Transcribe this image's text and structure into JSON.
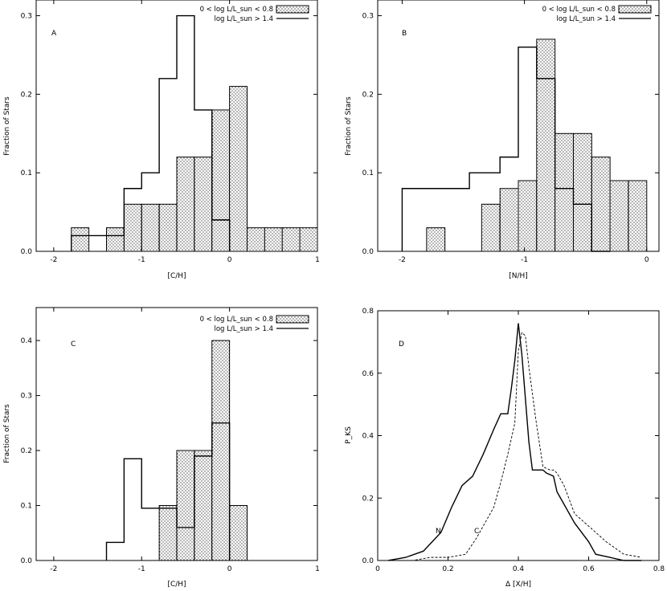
{
  "chart_data": [
    {
      "type": "bar",
      "panel": "A",
      "xlabel": "[C/H]",
      "ylabel": "Fraction of Stars",
      "xlim": [
        -2.2,
        1.0
      ],
      "ylim": [
        0,
        0.32
      ],
      "xticks": [
        -2,
        -1,
        0,
        1
      ],
      "yticks": [
        0.0,
        0.1,
        0.2,
        0.3
      ],
      "ytick_labels": [
        "0.0",
        "0.1",
        "0.2",
        "0.3"
      ],
      "legend": {
        "dwarf_label": "0 < log L/L_sun < 0.8",
        "giant_label": "log L/L_sun > 1.4",
        "position": "top-right"
      },
      "bin_width": 0.2,
      "dwarfs": {
        "bins": [
          -1.8,
          -1.6,
          -1.4,
          -1.2,
          -1.0,
          -0.8,
          -0.6,
          -0.4,
          -0.2,
          0.0,
          0.2,
          0.4,
          0.6,
          0.8
        ],
        "values": [
          0.03,
          0.0,
          0.03,
          0.06,
          0.06,
          0.06,
          0.12,
          0.12,
          0.18,
          0.21,
          0.03,
          0.03,
          0.03,
          0.03
        ]
      },
      "giants": {
        "step_x": [
          -1.8,
          -1.6,
          -1.4,
          -1.2,
          -1.0,
          -0.8,
          -0.6,
          -0.4,
          -0.2,
          0.0
        ],
        "step_y": [
          0.02,
          0.02,
          0.02,
          0.08,
          0.1,
          0.22,
          0.3,
          0.18,
          0.04
        ]
      }
    },
    {
      "type": "bar",
      "panel": "B",
      "xlabel": "[N/H]",
      "ylabel": "Fraction of Stars",
      "xlim": [
        -2.2,
        0.1
      ],
      "ylim": [
        0,
        0.32
      ],
      "xticks": [
        -2,
        -1,
        0
      ],
      "yticks": [
        0.0,
        0.1,
        0.2,
        0.3
      ],
      "ytick_labels": [
        "0.0",
        "0.1",
        "0.2",
        "0.3"
      ],
      "legend": {
        "dwarf_label": "0 < log L/L_sun < 0.8",
        "giant_label": "log L/L_sun > 1.4",
        "position": "top-right"
      },
      "bin_width": 0.15,
      "dwarfs": {
        "bins": [
          -1.8,
          -1.35,
          -1.2,
          -1.05,
          -0.9,
          -0.75,
          -0.6,
          -0.45,
          -0.3,
          -0.15
        ],
        "values": [
          0.03,
          0.06,
          0.08,
          0.09,
          0.27,
          0.15,
          0.15,
          0.12,
          0.09,
          0.09
        ]
      },
      "giants": {
        "step_x": [
          -2.0,
          -1.7,
          -1.45,
          -1.2,
          -1.05,
          -0.9,
          -0.75,
          -0.6,
          -0.45,
          -0.3
        ],
        "step_y": [
          0.08,
          0.08,
          0.1,
          0.12,
          0.26,
          0.22,
          0.08,
          0.06,
          0.0
        ]
      }
    },
    {
      "type": "bar",
      "panel": "C",
      "xlabel": "[C/H]",
      "ylabel": "Fraction of Stars",
      "xlim": [
        -2.2,
        1.0
      ],
      "ylim": [
        0,
        0.46
      ],
      "xticks": [
        -2,
        -1,
        0,
        1
      ],
      "yticks": [
        0.0,
        0.1,
        0.2,
        0.3,
        0.4
      ],
      "ytick_labels": [
        "0.0",
        "0.1",
        "0.2",
        "0.3",
        "0.4"
      ],
      "legend": {
        "dwarf_label": "0 < log L/L_sun < 0.8",
        "giant_label": "log L/L_sun > 1.4",
        "position": "top-right"
      },
      "bin_width": 0.2,
      "dwarfs": {
        "bins": [
          -0.8,
          -0.6,
          -0.4,
          -0.2,
          0.0
        ],
        "values": [
          0.1,
          0.2,
          0.2,
          0.4,
          0.1
        ]
      },
      "giants": {
        "step_x": [
          -1.4,
          -1.2,
          -1.0,
          -0.8,
          -0.6,
          -0.4,
          -0.2,
          0.0
        ],
        "step_y": [
          0.033,
          0.185,
          0.095,
          0.095,
          0.06,
          0.19,
          0.25
        ]
      }
    },
    {
      "type": "line",
      "panel": "D",
      "xlabel": "Δ [X/H]",
      "ylabel": "P_KS",
      "xlim": [
        0,
        0.8
      ],
      "ylim": [
        0,
        0.8
      ],
      "xticks": [
        0,
        0.2,
        0.4,
        0.6,
        0.8
      ],
      "xtick_labels": [
        "0",
        "0.2",
        "0.4",
        "0.6",
        "0.8"
      ],
      "yticks": [
        0,
        0.2,
        0.4,
        0.6,
        0.8
      ],
      "ytick_labels": [
        "0.0",
        "0.2",
        "0.4",
        "0.6",
        "0.8"
      ],
      "series": [
        {
          "name": "N",
          "style": "solid",
          "x": [
            0.03,
            0.08,
            0.13,
            0.18,
            0.21,
            0.24,
            0.27,
            0.3,
            0.33,
            0.35,
            0.37,
            0.38,
            0.39,
            0.4,
            0.41,
            0.42,
            0.43,
            0.44,
            0.45,
            0.47,
            0.48,
            0.5,
            0.51,
            0.53,
            0.56,
            0.6,
            0.62,
            0.66,
            0.7,
            0.75
          ],
          "y": [
            0.0,
            0.01,
            0.03,
            0.09,
            0.17,
            0.24,
            0.27,
            0.34,
            0.42,
            0.47,
            0.47,
            0.55,
            0.64,
            0.76,
            0.66,
            0.52,
            0.38,
            0.29,
            0.29,
            0.29,
            0.28,
            0.27,
            0.22,
            0.18,
            0.12,
            0.06,
            0.02,
            0.01,
            0.0,
            0.0
          ]
        },
        {
          "name": "C",
          "style": "dashed",
          "x": [
            0.05,
            0.1,
            0.15,
            0.2,
            0.25,
            0.28,
            0.3,
            0.33,
            0.35,
            0.37,
            0.39,
            0.4,
            0.41,
            0.42,
            0.43,
            0.45,
            0.47,
            0.49,
            0.5,
            0.51,
            0.53,
            0.56,
            0.6,
            0.65,
            0.7,
            0.75
          ],
          "y": [
            0.0,
            0.0,
            0.01,
            0.01,
            0.02,
            0.07,
            0.11,
            0.17,
            0.25,
            0.34,
            0.44,
            0.67,
            0.73,
            0.72,
            0.62,
            0.45,
            0.3,
            0.29,
            0.29,
            0.28,
            0.24,
            0.15,
            0.11,
            0.06,
            0.02,
            0.01
          ]
        }
      ],
      "curve_labels": [
        "N",
        "C"
      ]
    }
  ],
  "panel_letters": [
    "A",
    "B",
    "C",
    "D"
  ]
}
